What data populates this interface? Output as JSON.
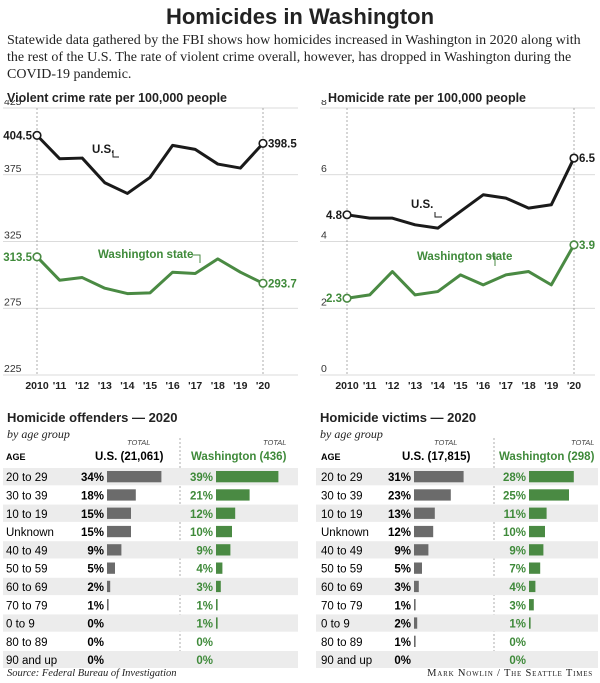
{
  "title": "Homicides in Washington",
  "intro": "Statewide data gathered by the FBI shows how homicides increased in Washington in 2020 along with the rest of the U.S. The rate of violent crime overall, however, has dropped in Washington during the COVID-19 pandemic.",
  "colors": {
    "us": "#1a1a1a",
    "wa": "#4a8a43",
    "wa_text": "#3f8a3a",
    "bar_us": "#6b6b6b",
    "bar_wa": "#4a8a43",
    "row_shade": "#ececec"
  },
  "chart_data": [
    {
      "type": "line",
      "title": "Violent crime rate per 100,000 people",
      "x": [
        "2010",
        "'11",
        "'12",
        "'13",
        "'14",
        "'15",
        "'16",
        "'17",
        "'18",
        "'19",
        "'20"
      ],
      "ylim": [
        225,
        425
      ],
      "yticks": [
        "425",
        "375",
        "325",
        "275",
        "225"
      ],
      "series": [
        {
          "name": "U.S.",
          "values": [
            404.5,
            387,
            387.5,
            369,
            361,
            373,
            397,
            394,
            383,
            380,
            398.5
          ],
          "start_label": "404.5",
          "end_label": "398.5"
        },
        {
          "name": "Washington state",
          "values": [
            313.5,
            296,
            298,
            290,
            286,
            286.5,
            302,
            301,
            312,
            302,
            293.7
          ],
          "start_label": "313.5",
          "end_label": "293.7"
        }
      ]
    },
    {
      "type": "line",
      "title": "Homicide rate per 100,000 people",
      "x": [
        "2010",
        "'11",
        "'12",
        "'13",
        "'14",
        "'15",
        "'16",
        "'17",
        "'18",
        "'19",
        "'20"
      ],
      "ylim": [
        0,
        8
      ],
      "yticks": [
        "8",
        "6",
        "4",
        "2",
        "0"
      ],
      "series": [
        {
          "name": "U.S.",
          "values": [
            4.8,
            4.7,
            4.7,
            4.5,
            4.4,
            4.9,
            5.4,
            5.3,
            5.0,
            5.1,
            6.5
          ],
          "start_label": "4.8",
          "end_label": "6.5"
        },
        {
          "name": "Washington state",
          "values": [
            2.3,
            2.4,
            3.1,
            2.4,
            2.5,
            3.0,
            2.7,
            3.0,
            3.1,
            2.7,
            3.9
          ],
          "start_label": "2.3",
          "end_label": "3.9"
        }
      ]
    },
    {
      "type": "bar",
      "title": "Homicide offenders — 2020",
      "subtitle": "by age group",
      "age_header": "AGE",
      "total_label": "TOTAL",
      "us_header": "U.S. (21,061)",
      "wa_header": "Washington (436)",
      "categories": [
        "20 to 29",
        "30 to 39",
        "10 to 19",
        "Unknown",
        "40 to 49",
        "50 to 59",
        "60 to 69",
        "70 to 79",
        "0 to 9",
        "80 to 89",
        "90 and up"
      ],
      "series": [
        {
          "name": "U.S.",
          "values": [
            34,
            18,
            15,
            15,
            9,
            5,
            2,
            1,
            0,
            0,
            0
          ],
          "labels": [
            "34%",
            "18%",
            "15%",
            "15%",
            "9%",
            "5%",
            "2%",
            "1%",
            "0%",
            "0%",
            "0%"
          ]
        },
        {
          "name": "Washington",
          "values": [
            39,
            21,
            12,
            10,
            9,
            4,
            3,
            1,
            1,
            0,
            0
          ],
          "labels": [
            "39%",
            "21%",
            "12%",
            "10%",
            "9%",
            "4%",
            "3%",
            "1%",
            "1%",
            "0%",
            "0%"
          ]
        }
      ]
    },
    {
      "type": "bar",
      "title": "Homicide victims — 2020",
      "subtitle": "by age group",
      "age_header": "AGE",
      "total_label": "TOTAL",
      "us_header": "U.S. (17,815)",
      "wa_header": "Washington (298)",
      "categories": [
        "20 to 29",
        "30 to 39",
        "10 to 19",
        "Unknown",
        "40 to 49",
        "50 to 59",
        "60 to 69",
        "70 to 79",
        "0 to 9",
        "80 to 89",
        "90 and up"
      ],
      "series": [
        {
          "name": "U.S.",
          "values": [
            31,
            23,
            13,
            12,
            9,
            5,
            3,
            1,
            2,
            1,
            0
          ],
          "labels": [
            "31%",
            "23%",
            "13%",
            "12%",
            "9%",
            "5%",
            "3%",
            "1%",
            "2%",
            "1%",
            "0%"
          ]
        },
        {
          "name": "Washington",
          "values": [
            28,
            25,
            11,
            10,
            9,
            7,
            4,
            3,
            1,
            0,
            0
          ],
          "labels": [
            "28%",
            "25%",
            "11%",
            "10%",
            "9%",
            "7%",
            "4%",
            "3%",
            "1%",
            "0%",
            "0%"
          ]
        }
      ]
    }
  ],
  "source": "Source: Federal Bureau of Investigation",
  "credit": "Mark Nowlin / The Seattle Times"
}
